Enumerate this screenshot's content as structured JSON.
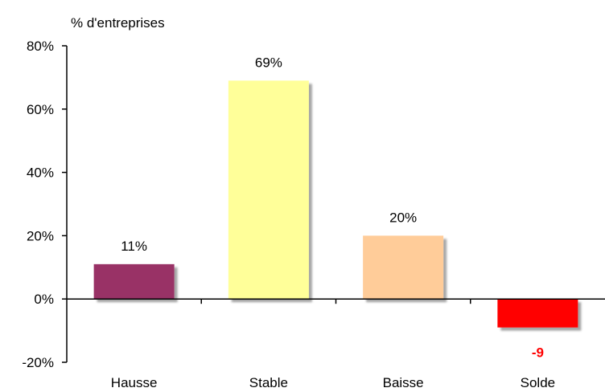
{
  "chart_data": {
    "type": "bar",
    "ylabel": "% d'entreprises",
    "categories": [
      "Hausse",
      "Stable",
      "Baisse",
      "Solde"
    ],
    "values": [
      11,
      69,
      20,
      -9
    ],
    "data_labels": [
      "11%",
      "69%",
      "20%",
      "-9"
    ],
    "bar_colors": [
      "#993366",
      "#FFFF99",
      "#FFCC99",
      "#FF0000"
    ],
    "label_colors": [
      "#000000",
      "#000000",
      "#000000",
      "#FF0000"
    ],
    "ylim": [
      -20,
      80
    ],
    "yticks": [
      -20,
      0,
      20,
      40,
      60,
      80
    ],
    "ytick_labels": [
      "-20%",
      "0%",
      "20%",
      "40%",
      "60%",
      "80%"
    ],
    "grid": false,
    "legend": "none"
  }
}
